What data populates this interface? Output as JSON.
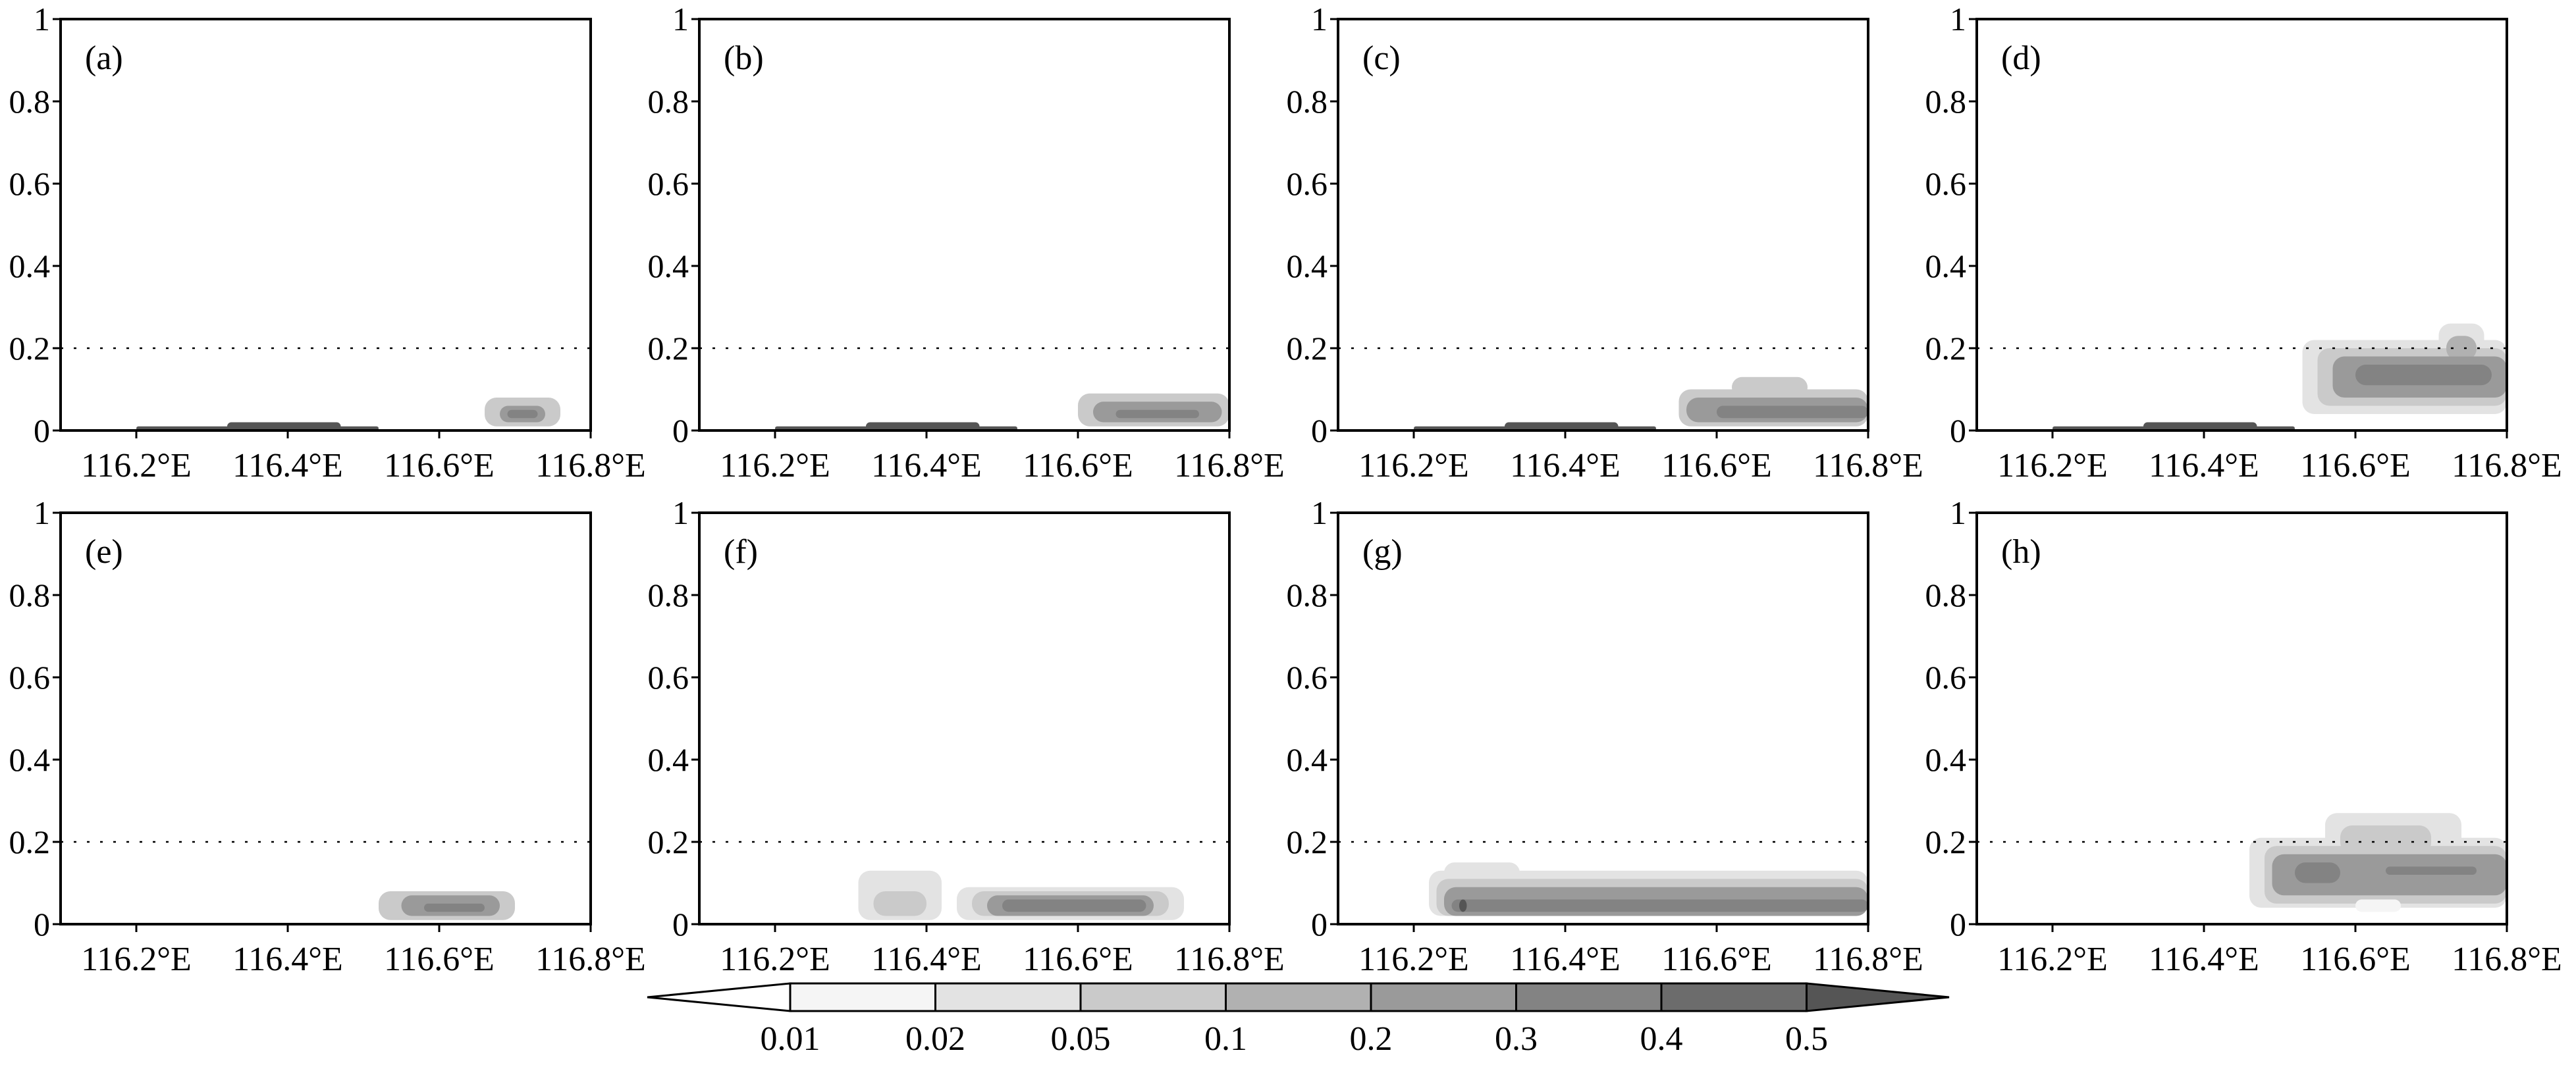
{
  "figure": {
    "tick_label_color": "#000000",
    "reference_line_y": 0.2
  },
  "chart_data": [
    {
      "type": "heatmap",
      "panel_label": "(a)",
      "xlim": [
        116.1,
        116.8
      ],
      "ylim": [
        0,
        1
      ],
      "x_ticks": [
        116.2,
        116.4,
        116.6,
        116.8
      ],
      "x_tick_labels": [
        "116.2°E",
        "116.4°E",
        "116.6°E",
        "116.8°E"
      ],
      "y_ticks": [
        0,
        0.2,
        0.4,
        0.6,
        0.8,
        1
      ],
      "y_tick_labels": [
        "0",
        "0.2",
        "0.4",
        "0.6",
        "0.8",
        "1"
      ],
      "features": [
        {
          "x0": 116.2,
          "x1": 116.52,
          "y0": 0,
          "y1": 0.01,
          "level": 0.5
        },
        {
          "x0": 116.32,
          "x1": 116.47,
          "y0": 0,
          "y1": 0.02,
          "level": 0.5
        },
        {
          "x0": 116.66,
          "x1": 116.76,
          "y0": 0.01,
          "y1": 0.08,
          "level": 0.05
        },
        {
          "x0": 116.68,
          "x1": 116.74,
          "y0": 0.02,
          "y1": 0.06,
          "level": 0.2
        },
        {
          "x0": 116.69,
          "x1": 116.73,
          "y0": 0.03,
          "y1": 0.05,
          "level": 0.3
        }
      ]
    },
    {
      "type": "heatmap",
      "panel_label": "(b)",
      "xlim": [
        116.1,
        116.8
      ],
      "ylim": [
        0,
        1
      ],
      "x_ticks": [
        116.2,
        116.4,
        116.6,
        116.8
      ],
      "x_tick_labels": [
        "116.2°E",
        "116.4°E",
        "116.6°E",
        "116.8°E"
      ],
      "y_ticks": [
        0,
        0.2,
        0.4,
        0.6,
        0.8,
        1
      ],
      "y_tick_labels": [
        "0",
        "0.2",
        "0.4",
        "0.6",
        "0.8",
        "1"
      ],
      "features": [
        {
          "x0": 116.2,
          "x1": 116.52,
          "y0": 0,
          "y1": 0.01,
          "level": 0.5
        },
        {
          "x0": 116.32,
          "x1": 116.47,
          "y0": 0,
          "y1": 0.02,
          "level": 0.5
        },
        {
          "x0": 116.6,
          "x1": 116.8,
          "y0": 0.01,
          "y1": 0.09,
          "level": 0.05
        },
        {
          "x0": 116.62,
          "x1": 116.79,
          "y0": 0.02,
          "y1": 0.07,
          "level": 0.2
        },
        {
          "x0": 116.65,
          "x1": 116.76,
          "y0": 0.03,
          "y1": 0.05,
          "level": 0.3
        }
      ]
    },
    {
      "type": "heatmap",
      "panel_label": "(c)",
      "xlim": [
        116.1,
        116.8
      ],
      "ylim": [
        0,
        1
      ],
      "x_ticks": [
        116.2,
        116.4,
        116.6,
        116.8
      ],
      "x_tick_labels": [
        "116.2°E",
        "116.4°E",
        "116.6°E",
        "116.8°E"
      ],
      "y_ticks": [
        0,
        0.2,
        0.4,
        0.6,
        0.8,
        1
      ],
      "y_tick_labels": [
        "0",
        "0.2",
        "0.4",
        "0.6",
        "0.8",
        "1"
      ],
      "features": [
        {
          "x0": 116.2,
          "x1": 116.52,
          "y0": 0,
          "y1": 0.01,
          "level": 0.5
        },
        {
          "x0": 116.32,
          "x1": 116.47,
          "y0": 0,
          "y1": 0.02,
          "level": 0.5
        },
        {
          "x0": 116.55,
          "x1": 116.8,
          "y0": 0.01,
          "y1": 0.1,
          "level": 0.05
        },
        {
          "x0": 116.62,
          "x1": 116.72,
          "y0": 0.08,
          "y1": 0.13,
          "level": 0.05
        },
        {
          "x0": 116.56,
          "x1": 116.8,
          "y0": 0.02,
          "y1": 0.08,
          "level": 0.2
        },
        {
          "x0": 116.6,
          "x1": 116.8,
          "y0": 0.03,
          "y1": 0.06,
          "level": 0.3
        }
      ]
    },
    {
      "type": "heatmap",
      "panel_label": "(d)",
      "xlim": [
        116.1,
        116.8
      ],
      "ylim": [
        0,
        1
      ],
      "x_ticks": [
        116.2,
        116.4,
        116.6,
        116.8
      ],
      "x_tick_labels": [
        "116.2°E",
        "116.4°E",
        "116.6°E",
        "116.8°E"
      ],
      "y_ticks": [
        0,
        0.2,
        0.4,
        0.6,
        0.8,
        1
      ],
      "y_tick_labels": [
        "0",
        "0.2",
        "0.4",
        "0.6",
        "0.8",
        "1"
      ],
      "features": [
        {
          "x0": 116.2,
          "x1": 116.52,
          "y0": 0,
          "y1": 0.01,
          "level": 0.5
        },
        {
          "x0": 116.32,
          "x1": 116.47,
          "y0": 0,
          "y1": 0.02,
          "level": 0.5
        },
        {
          "x0": 116.53,
          "x1": 116.8,
          "y0": 0.04,
          "y1": 0.22,
          "level": 0.02
        },
        {
          "x0": 116.71,
          "x1": 116.77,
          "y0": 0.15,
          "y1": 0.26,
          "level": 0.02
        },
        {
          "x0": 116.55,
          "x1": 116.8,
          "y0": 0.06,
          "y1": 0.2,
          "level": 0.05
        },
        {
          "x0": 116.72,
          "x1": 116.76,
          "y0": 0.17,
          "y1": 0.23,
          "level": 0.1
        },
        {
          "x0": 116.57,
          "x1": 116.8,
          "y0": 0.08,
          "y1": 0.18,
          "level": 0.2
        },
        {
          "x0": 116.6,
          "x1": 116.78,
          "y0": 0.11,
          "y1": 0.16,
          "level": 0.3
        }
      ]
    },
    {
      "type": "heatmap",
      "panel_label": "(e)",
      "xlim": [
        116.1,
        116.8
      ],
      "ylim": [
        0,
        1
      ],
      "x_ticks": [
        116.2,
        116.4,
        116.6,
        116.8
      ],
      "x_tick_labels": [
        "116.2°E",
        "116.4°E",
        "116.6°E",
        "116.8°E"
      ],
      "y_ticks": [
        0,
        0.2,
        0.4,
        0.6,
        0.8,
        1
      ],
      "y_tick_labels": [
        "0",
        "0.2",
        "0.4",
        "0.6",
        "0.8",
        "1"
      ],
      "features": [
        {
          "x0": 116.52,
          "x1": 116.7,
          "y0": 0.01,
          "y1": 0.08,
          "level": 0.05
        },
        {
          "x0": 116.55,
          "x1": 116.68,
          "y0": 0.02,
          "y1": 0.07,
          "level": 0.2
        },
        {
          "x0": 116.58,
          "x1": 116.66,
          "y0": 0.03,
          "y1": 0.05,
          "level": 0.3
        }
      ]
    },
    {
      "type": "heatmap",
      "panel_label": "(f)",
      "xlim": [
        116.1,
        116.8
      ],
      "ylim": [
        0,
        1
      ],
      "x_ticks": [
        116.2,
        116.4,
        116.6,
        116.8
      ],
      "x_tick_labels": [
        "116.2°E",
        "116.4°E",
        "116.6°E",
        "116.8°E"
      ],
      "y_ticks": [
        0,
        0.2,
        0.4,
        0.6,
        0.8,
        1
      ],
      "y_tick_labels": [
        "0",
        "0.2",
        "0.4",
        "0.6",
        "0.8",
        "1"
      ],
      "features": [
        {
          "x0": 116.31,
          "x1": 116.42,
          "y0": 0.01,
          "y1": 0.13,
          "level": 0.02
        },
        {
          "x0": 116.33,
          "x1": 116.4,
          "y0": 0.02,
          "y1": 0.08,
          "level": 0.05
        },
        {
          "x0": 116.44,
          "x1": 116.74,
          "y0": 0.01,
          "y1": 0.09,
          "level": 0.02
        },
        {
          "x0": 116.46,
          "x1": 116.72,
          "y0": 0.02,
          "y1": 0.08,
          "level": 0.05
        },
        {
          "x0": 116.48,
          "x1": 116.7,
          "y0": 0.02,
          "y1": 0.07,
          "level": 0.2
        },
        {
          "x0": 116.5,
          "x1": 116.69,
          "y0": 0.03,
          "y1": 0.06,
          "level": 0.3
        }
      ]
    },
    {
      "type": "heatmap",
      "panel_label": "(g)",
      "xlim": [
        116.1,
        116.8
      ],
      "ylim": [
        0,
        1
      ],
      "x_ticks": [
        116.2,
        116.4,
        116.6,
        116.8
      ],
      "x_tick_labels": [
        "116.2°E",
        "116.4°E",
        "116.6°E",
        "116.8°E"
      ],
      "y_ticks": [
        0,
        0.2,
        0.4,
        0.6,
        0.8,
        1
      ],
      "y_tick_labels": [
        "0",
        "0.2",
        "0.4",
        "0.6",
        "0.8",
        "1"
      ],
      "features": [
        {
          "x0": 116.22,
          "x1": 116.8,
          "y0": 0.02,
          "y1": 0.13,
          "level": 0.02
        },
        {
          "x0": 116.24,
          "x1": 116.34,
          "y0": 0.1,
          "y1": 0.15,
          "level": 0.02
        },
        {
          "x0": 116.23,
          "x1": 116.8,
          "y0": 0.02,
          "y1": 0.11,
          "level": 0.05
        },
        {
          "x0": 116.24,
          "x1": 116.8,
          "y0": 0.02,
          "y1": 0.09,
          "level": 0.2
        },
        {
          "x0": 116.25,
          "x1": 116.8,
          "y0": 0.03,
          "y1": 0.06,
          "level": 0.3
        },
        {
          "x0": 116.26,
          "x1": 116.27,
          "y0": 0.03,
          "y1": 0.06,
          "level": 0.5
        }
      ]
    },
    {
      "type": "heatmap",
      "panel_label": "(h)",
      "xlim": [
        116.1,
        116.8
      ],
      "ylim": [
        0,
        1
      ],
      "x_ticks": [
        116.2,
        116.4,
        116.6,
        116.8
      ],
      "x_tick_labels": [
        "116.2°E",
        "116.4°E",
        "116.6°E",
        "116.8°E"
      ],
      "y_ticks": [
        0,
        0.2,
        0.4,
        0.6,
        0.8,
        1
      ],
      "y_tick_labels": [
        "0",
        "0.2",
        "0.4",
        "0.6",
        "0.8",
        "1"
      ],
      "features": [
        {
          "x0": 116.46,
          "x1": 116.8,
          "y0": 0.04,
          "y1": 0.21,
          "level": 0.02
        },
        {
          "x0": 116.56,
          "x1": 116.74,
          "y0": 0.18,
          "y1": 0.27,
          "level": 0.02
        },
        {
          "x0": 116.48,
          "x1": 116.8,
          "y0": 0.05,
          "y1": 0.19,
          "level": 0.05
        },
        {
          "x0": 116.58,
          "x1": 116.7,
          "y0": 0.17,
          "y1": 0.24,
          "level": 0.05
        },
        {
          "x0": 116.49,
          "x1": 116.8,
          "y0": 0.07,
          "y1": 0.17,
          "level": 0.2
        },
        {
          "x0": 116.52,
          "x1": 116.58,
          "y0": 0.1,
          "y1": 0.15,
          "level": 0.3
        },
        {
          "x0": 116.64,
          "x1": 116.76,
          "y0": 0.12,
          "y1": 0.14,
          "level": 0.3
        },
        {
          "x0": 116.6,
          "x1": 116.66,
          "y0": 0.03,
          "y1": 0.06,
          "level": 0.01
        }
      ]
    }
  ],
  "colorbar": {
    "levels": [
      0.01,
      0.02,
      0.05,
      0.1,
      0.2,
      0.3,
      0.4,
      0.5
    ],
    "labels": [
      "0.01",
      "0.02",
      "0.05",
      "0.1",
      "0.2",
      "0.3",
      "0.4",
      "0.5"
    ],
    "colors": [
      "#ffffff",
      "#f5f5f5",
      "#e3e3e3",
      "#cacaca",
      "#b1b1b1",
      "#9a9a9a",
      "#838383",
      "#6c6c6c",
      "#555555"
    ]
  }
}
